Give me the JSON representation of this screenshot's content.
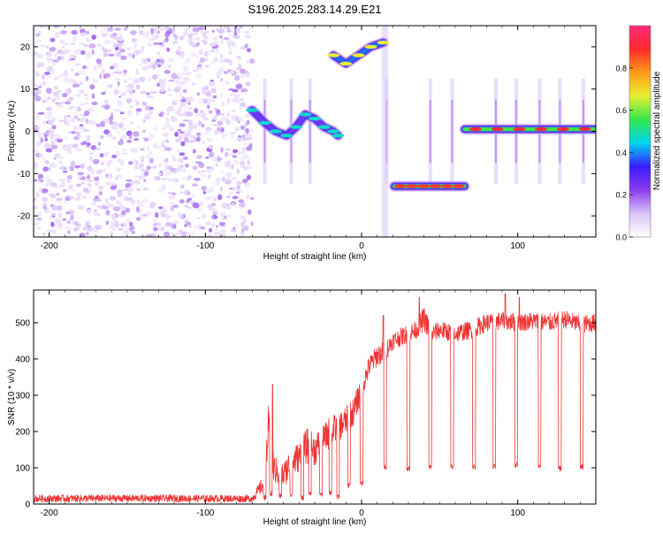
{
  "figure_title": "S196.2025.283.14.29.E21",
  "chart_data": [
    {
      "type": "heatmap",
      "name": "spectrogram",
      "xlabel": "Height of straight line (km)",
      "ylabel": "Frequency (Hz)",
      "xlim": [
        -210,
        150
      ],
      "ylim": [
        -25,
        25
      ],
      "xticks": [
        -200,
        -100,
        0,
        100
      ],
      "xtick_labels": [
        "-200",
        "-100",
        "0",
        "100"
      ],
      "yticks": [
        -20,
        -10,
        0,
        10,
        20
      ],
      "ytick_labels": [
        "-20",
        "-10",
        "0",
        "10",
        "20"
      ],
      "colorbar": {
        "label": "Normalized spectral amplitude",
        "range": [
          0,
          1
        ],
        "ticks": [
          0.0,
          0.2,
          0.4,
          0.6,
          0.8
        ],
        "tick_labels": [
          "0.0",
          "0.2",
          "0.4",
          "0.6",
          "0.8"
        ],
        "colors": [
          "#ffffff",
          "#d9c4f7",
          "#8b3cf0",
          "#3a1cff",
          "#00d6f0",
          "#33e84a",
          "#e8f030",
          "#ff9a1a",
          "#ff2a2a",
          "#ff2a80"
        ]
      },
      "noise_region": {
        "x": [
          -210,
          -70
        ],
        "freq": [
          -25,
          25
        ],
        "amplitude_range": [
          0.05,
          0.2
        ]
      },
      "features": [
        {
          "name": "descending-track",
          "x": [
            -70,
            -62,
            -55,
            -48,
            -42,
            -36,
            -30,
            -24,
            -18,
            -15
          ],
          "freq": [
            5,
            2,
            0,
            -1,
            1,
            4,
            3,
            1,
            0,
            -1
          ],
          "amplitude": 0.35
        },
        {
          "name": "high-freq-track",
          "x": [
            -18,
            -10,
            -2,
            6,
            14
          ],
          "freq": [
            18,
            16,
            18,
            20,
            21
          ],
          "amplitude": 0.55
        },
        {
          "name": "negative-band",
          "x": [
            21,
            66
          ],
          "freq": -13,
          "amplitude": 0.75
        },
        {
          "name": "zero-band",
          "x": [
            66,
            150
          ],
          "freq": 0.5,
          "amplitude": 0.8
        }
      ],
      "spikes_x": [
        -62,
        -45,
        -33,
        16,
        44,
        58,
        86,
        99,
        114,
        127,
        142
      ]
    },
    {
      "type": "line",
      "name": "snr",
      "xlabel": "Height of straight line (km)",
      "ylabel": "SNR (10 * v/v)",
      "xlim": [
        -210,
        150
      ],
      "ylim": [
        0,
        590
      ],
      "xticks": [
        -200,
        -100,
        0,
        100
      ],
      "xtick_labels": [
        "-200",
        "-100",
        "0",
        "100"
      ],
      "yticks": [
        0,
        100,
        200,
        300,
        400,
        500
      ],
      "ytick_labels": [
        "0",
        "100",
        "200",
        "300",
        "400",
        "500"
      ],
      "color": "#ee3333",
      "envelope": {
        "x": [
          -210,
          -155,
          -70,
          -62,
          -60,
          -56,
          -50,
          -45,
          -40,
          -35,
          -30,
          -25,
          -20,
          -15,
          -10,
          -5,
          0,
          5,
          10,
          15,
          20,
          25,
          30,
          35,
          40,
          45,
          50,
          60,
          70,
          80,
          90,
          100,
          110,
          120,
          130,
          140,
          150
        ],
        "y": [
          15,
          16,
          15,
          60,
          200,
          95,
          80,
          115,
          130,
          160,
          150,
          175,
          200,
          210,
          230,
          255,
          320,
          380,
          410,
          420,
          450,
          460,
          470,
          480,
          510,
          470,
          480,
          470,
          480,
          500,
          505,
          500,
          505,
          500,
          510,
          495,
          500
        ],
        "noise_amplitude": [
          10,
          10,
          10,
          25,
          80,
          40,
          35,
          45,
          40,
          50,
          45,
          40,
          45,
          40,
          40,
          40,
          35,
          30,
          30,
          30,
          25,
          25,
          25,
          25,
          35,
          25,
          25,
          25,
          25,
          25,
          25,
          25,
          25,
          25,
          25,
          25,
          25
        ]
      },
      "dips": [
        {
          "x": -62,
          "y": 10
        },
        {
          "x": -58,
          "y": 20
        },
        {
          "x": -52,
          "y": 15
        },
        {
          "x": -45,
          "y": 20
        },
        {
          "x": -38,
          "y": 10
        },
        {
          "x": -33,
          "y": 25
        },
        {
          "x": -26,
          "y": 20
        },
        {
          "x": -20,
          "y": 25
        },
        {
          "x": -15,
          "y": 10
        },
        {
          "x": -8,
          "y": 45
        },
        {
          "x": 0,
          "y": 50
        },
        {
          "x": 15,
          "y": 95
        },
        {
          "x": 30,
          "y": 90
        },
        {
          "x": 44,
          "y": 95
        },
        {
          "x": 58,
          "y": 95
        },
        {
          "x": 72,
          "y": 95
        },
        {
          "x": 85,
          "y": 95
        },
        {
          "x": 99,
          "y": 100
        },
        {
          "x": 114,
          "y": 95
        },
        {
          "x": 127,
          "y": 90
        },
        {
          "x": 141,
          "y": 95
        }
      ],
      "spikes": [
        {
          "x": -57,
          "y": 330
        },
        {
          "x": 14,
          "y": 520
        },
        {
          "x": 37,
          "y": 570
        },
        {
          "x": 92,
          "y": 580
        },
        {
          "x": 101,
          "y": 570
        }
      ]
    }
  ]
}
